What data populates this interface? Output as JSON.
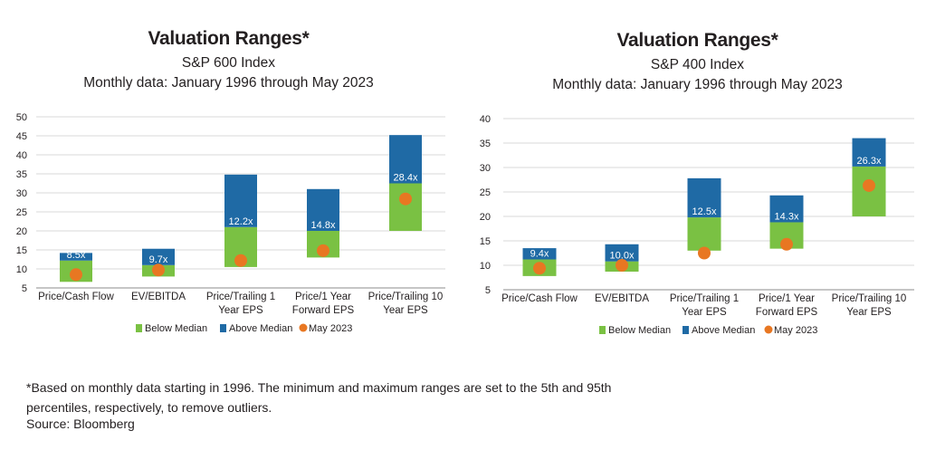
{
  "colors": {
    "below": "#7ac143",
    "above": "#1f6aa5",
    "may": "#e87722",
    "grid": "#d9d9d9",
    "axis": "#8c8c8c"
  },
  "legend_labels": [
    "Below Median",
    "Above Median",
    "May 2023"
  ],
  "footnote": "*Based on monthly data starting in 1996. The minimum and maximum ranges are set to the 5th and 95th percentiles, respectively, to remove outliers.",
  "source": "Source: Bloomberg",
  "chart_data": [
    {
      "type": "bar",
      "title": "Valuation Ranges*",
      "subtitle": "S&P 600 Index",
      "subtitle2": "Monthly data: January 1996 through May 2023",
      "ylim": [
        5,
        50
      ],
      "yticks": [
        5,
        10,
        15,
        20,
        25,
        30,
        35,
        40,
        45,
        50
      ],
      "grid": true,
      "legend_position": "bottom",
      "categories": [
        [
          "Price/Cash Flow"
        ],
        [
          "EV/EBITDA"
        ],
        [
          "Price/Trailing 1",
          "Year EPS"
        ],
        [
          "Price/1 Year",
          "Forward EPS"
        ],
        [
          "Price/Trailing 10",
          "Year EPS"
        ]
      ],
      "series": [
        {
          "name": "Below Median",
          "low": [
            6.6,
            8.0,
            10.5,
            13.0,
            20.0
          ],
          "high": [
            12.2,
            11.0,
            21.0,
            20.0,
            32.5
          ]
        },
        {
          "name": "Above Median",
          "low": [
            12.2,
            11.0,
            21.0,
            20.0,
            32.5
          ],
          "high": [
            14.2,
            15.3,
            34.8,
            31.0,
            45.2
          ]
        },
        {
          "name": "May 2023",
          "values": [
            8.5,
            9.7,
            12.2,
            14.8,
            28.4
          ],
          "labels": [
            "8.5x",
            "9.7x",
            "12.2x",
            "14.8x",
            "28.4x"
          ]
        }
      ]
    },
    {
      "type": "bar",
      "title": "Valuation Ranges*",
      "subtitle": "S&P 400 Index",
      "subtitle2": "Monthly data: January 1996 through May 2023",
      "ylim": [
        5,
        40
      ],
      "yticks": [
        5,
        10,
        15,
        20,
        25,
        30,
        35,
        40
      ],
      "grid": true,
      "legend_position": "bottom",
      "categories": [
        [
          "Price/Cash Flow"
        ],
        [
          "EV/EBITDA"
        ],
        [
          "Price/Trailing 1",
          "Year EPS"
        ],
        [
          "Price/1 Year",
          "Forward EPS"
        ],
        [
          "Price/Trailing 10",
          "Year EPS"
        ]
      ],
      "series": [
        {
          "name": "Below Median",
          "low": [
            7.8,
            8.7,
            13.0,
            13.4,
            20.0
          ],
          "high": [
            11.2,
            10.8,
            19.8,
            18.8,
            30.2
          ]
        },
        {
          "name": "Above Median",
          "low": [
            11.2,
            10.8,
            19.8,
            18.8,
            30.2
          ],
          "high": [
            13.5,
            14.3,
            27.8,
            24.3,
            36.0
          ]
        },
        {
          "name": "May 2023",
          "values": [
            9.4,
            10.0,
            12.5,
            14.3,
            26.3
          ],
          "labels": [
            "9.4x",
            "10.0x",
            "12.5x",
            "14.3x",
            "26.3x"
          ]
        }
      ]
    }
  ]
}
